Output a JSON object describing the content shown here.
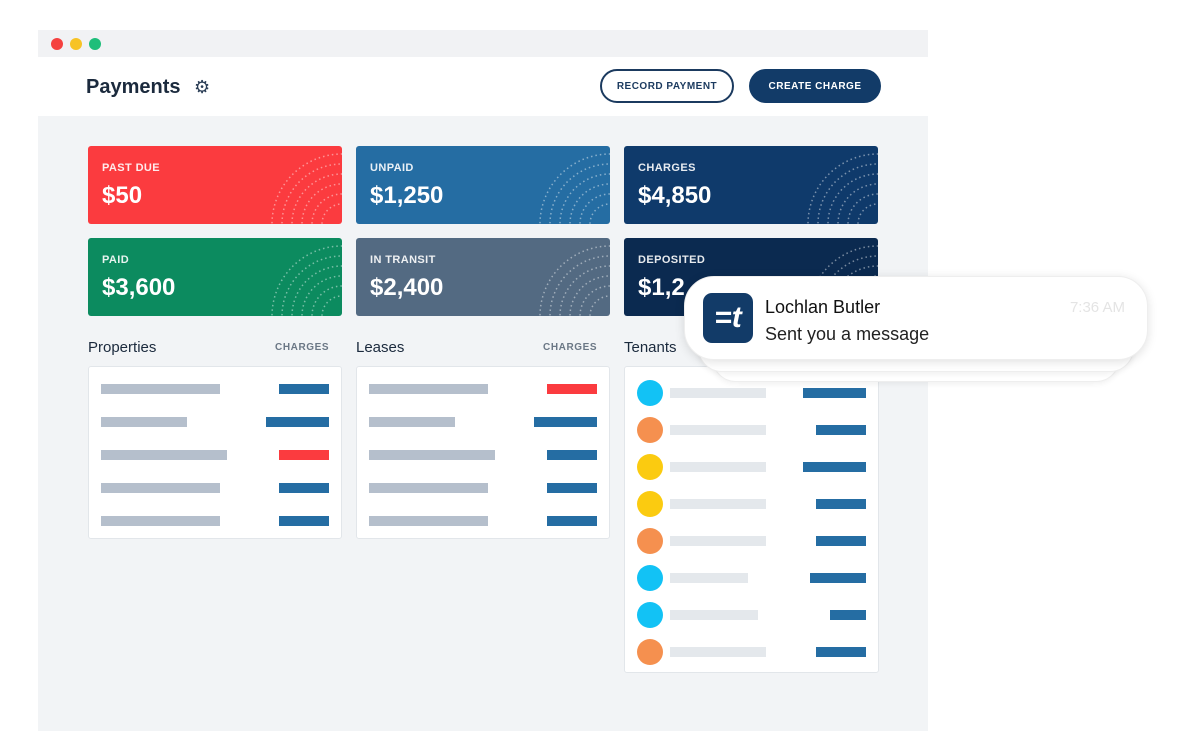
{
  "window": {
    "controls": [
      {
        "name": "close",
        "color": "#f5413f"
      },
      {
        "name": "minimize",
        "color": "#f7c325"
      },
      {
        "name": "maximize",
        "color": "#1ebe7a"
      }
    ]
  },
  "header": {
    "title": "Payments",
    "settings_icon": "gear-icon",
    "record_payment": "RECORD PAYMENT",
    "create_charge": "CREATE CHARGE"
  },
  "cards": [
    {
      "label": "PAST DUE",
      "value": "$50",
      "color": "#fb3b3f"
    },
    {
      "label": "UNPAID",
      "value": "$1,250",
      "color": "#256da3"
    },
    {
      "label": "CHARGES",
      "value": "$4,850",
      "color": "#0f3a6b"
    },
    {
      "label": "PAID",
      "value": "$3,600",
      "color": "#0c8b5f"
    },
    {
      "label": "IN TRANSIT",
      "value": "$2,400",
      "color": "#536a82"
    },
    {
      "label": "DEPOSITED",
      "value": "$1,2",
      "color": "#0b2a50"
    }
  ],
  "sections": {
    "properties": {
      "title": "Properties",
      "column": "CHARGES"
    },
    "leases": {
      "title": "Leases",
      "column": "CHARGES"
    },
    "tenants": {
      "title": "Tenants"
    }
  },
  "notification": {
    "sender": "Lochlan Butler",
    "message": "Sent you a message",
    "time": "7:36 AM",
    "app_icon": "=t"
  }
}
